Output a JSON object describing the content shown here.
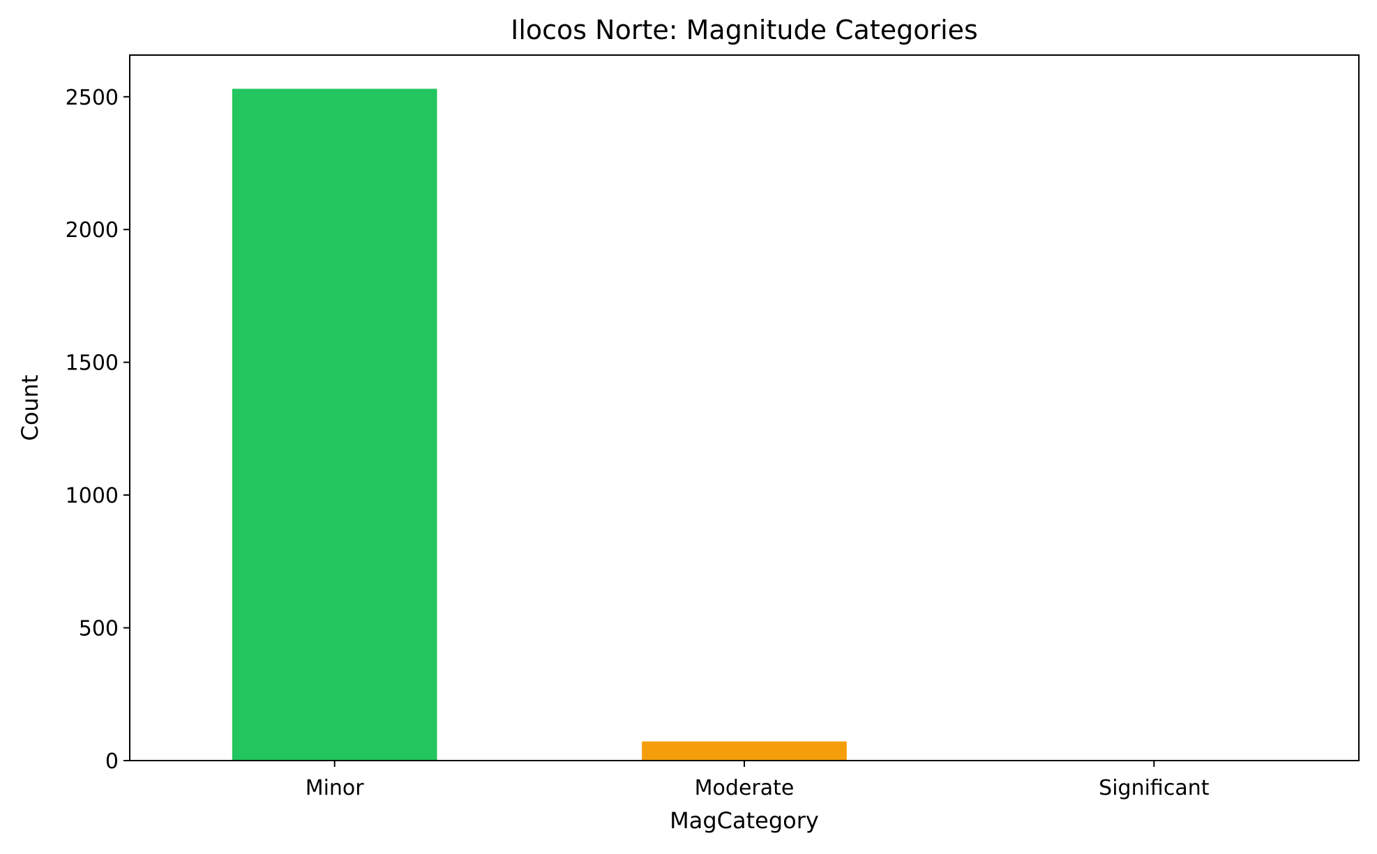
{
  "chart_data": {
    "type": "bar",
    "title": "Ilocos Norte: Magnitude Categories",
    "xlabel": "MagCategory",
    "ylabel": "Count",
    "categories": [
      "Minor",
      "Moderate",
      "Significant"
    ],
    "values": [
      2530,
      72,
      1
    ],
    "colors": [
      "#22c55e",
      "#f59e0b",
      "#ef4444"
    ],
    "ylim": [
      0,
      2657
    ],
    "yticks": [
      0,
      500,
      1000,
      1500,
      2000,
      2500
    ],
    "grid": false,
    "legend": "none"
  }
}
